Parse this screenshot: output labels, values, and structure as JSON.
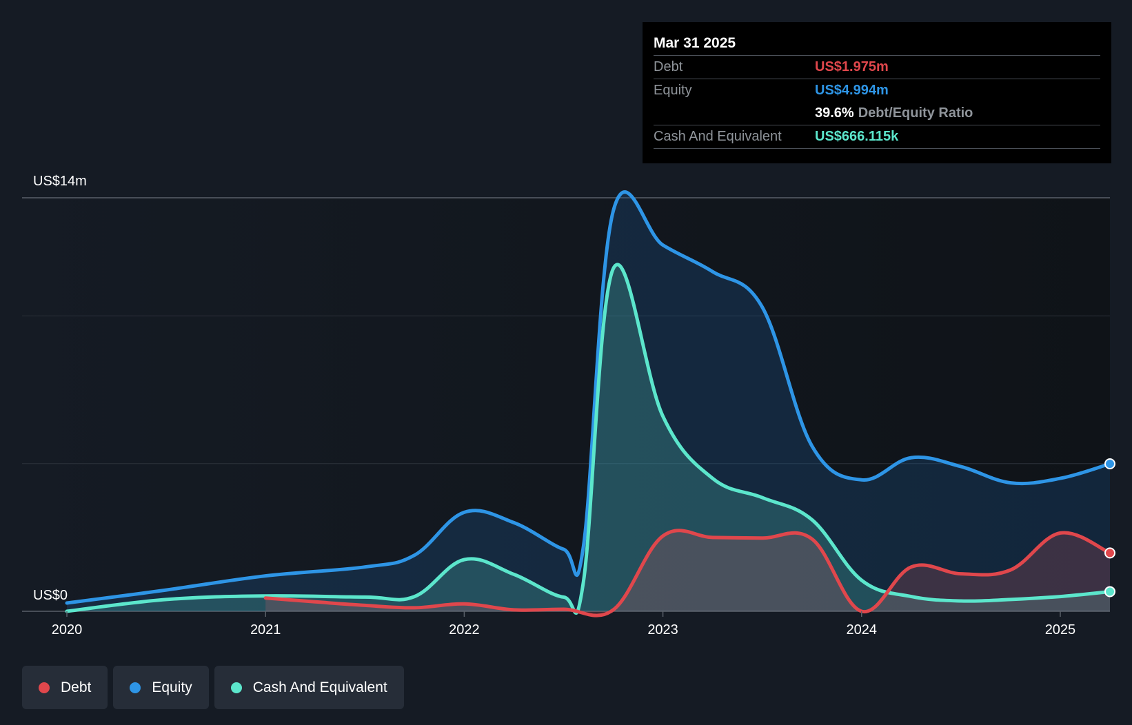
{
  "chart_data": {
    "type": "area",
    "title": "",
    "xlabel": "",
    "ylabel": "",
    "y_axis_top_label": "US$14m",
    "y_axis_bottom_label": "US$0",
    "ylim": [
      0,
      14
    ],
    "xlim": [
      2020.0,
      2025.25
    ],
    "x_tick_labels": [
      "2020",
      "2021",
      "2022",
      "2023",
      "2024",
      "2025"
    ],
    "x_ticks": [
      2020,
      2021,
      2022,
      2023,
      2024,
      2025
    ],
    "gridlines": [
      0,
      5,
      10,
      14
    ],
    "legend_position": "bottom-left",
    "series": [
      {
        "name": "Equity",
        "color": "#2e95e6",
        "points": [
          [
            2020.0,
            0.28
          ],
          [
            2020.5,
            0.72
          ],
          [
            2021.0,
            1.2
          ],
          [
            2021.5,
            1.5
          ],
          [
            2021.75,
            1.9
          ],
          [
            2022.0,
            3.35
          ],
          [
            2022.25,
            3.0
          ],
          [
            2022.5,
            2.1
          ],
          [
            2022.6,
            2.2
          ],
          [
            2022.75,
            13.55
          ],
          [
            2023.0,
            12.4
          ],
          [
            2023.25,
            11.5
          ],
          [
            2023.5,
            10.3
          ],
          [
            2023.75,
            5.6
          ],
          [
            2024.0,
            4.45
          ],
          [
            2024.25,
            5.2
          ],
          [
            2024.5,
            4.9
          ],
          [
            2024.75,
            4.35
          ],
          [
            2025.0,
            4.5
          ],
          [
            2025.25,
            4.994
          ]
        ]
      },
      {
        "name": "Cash And Equivalent",
        "color": "#5ce6cc",
        "points": [
          [
            2020.0,
            0.0
          ],
          [
            2020.5,
            0.4
          ],
          [
            2021.0,
            0.52
          ],
          [
            2021.5,
            0.48
          ],
          [
            2021.75,
            0.5
          ],
          [
            2022.0,
            1.75
          ],
          [
            2022.25,
            1.25
          ],
          [
            2022.5,
            0.48
          ],
          [
            2022.6,
            1.0
          ],
          [
            2022.75,
            11.6
          ],
          [
            2023.0,
            6.6
          ],
          [
            2023.25,
            4.5
          ],
          [
            2023.5,
            3.85
          ],
          [
            2023.75,
            3.1
          ],
          [
            2024.0,
            1.05
          ],
          [
            2024.25,
            0.5
          ],
          [
            2024.5,
            0.35
          ],
          [
            2024.75,
            0.4
          ],
          [
            2025.0,
            0.5
          ],
          [
            2025.25,
            0.666
          ]
        ]
      },
      {
        "name": "Debt",
        "color": "#e0474c",
        "points": [
          [
            2021.0,
            0.45
          ],
          [
            2021.25,
            0.32
          ],
          [
            2021.5,
            0.2
          ],
          [
            2021.75,
            0.12
          ],
          [
            2022.0,
            0.25
          ],
          [
            2022.25,
            0.05
          ],
          [
            2022.5,
            0.07
          ],
          [
            2022.75,
            0.05
          ],
          [
            2023.0,
            2.55
          ],
          [
            2023.25,
            2.5
          ],
          [
            2023.5,
            2.48
          ],
          [
            2023.75,
            2.45
          ],
          [
            2024.0,
            0.0
          ],
          [
            2024.25,
            1.5
          ],
          [
            2024.5,
            1.27
          ],
          [
            2024.75,
            1.4
          ],
          [
            2025.0,
            2.65
          ],
          [
            2025.25,
            1.975
          ]
        ]
      }
    ]
  },
  "tooltip": {
    "date": "Mar 31 2025",
    "debt_label": "Debt",
    "debt_value": "US$1.975m",
    "equity_label": "Equity",
    "equity_value": "US$4.994m",
    "ratio_value": "39.6%",
    "ratio_label": "Debt/Equity Ratio",
    "cash_label": "Cash And Equivalent",
    "cash_value": "US$666.115k"
  },
  "legend": {
    "items": [
      {
        "label": "Debt",
        "color": "#e0474c"
      },
      {
        "label": "Equity",
        "color": "#2e95e6"
      },
      {
        "label": "Cash And Equivalent",
        "color": "#5ce6cc"
      }
    ]
  },
  "colors": {
    "background": "#151b24",
    "plot_background": "#11161d",
    "debt": "#e0474c",
    "equity": "#2e95e6",
    "cash": "#5ce6cc"
  }
}
